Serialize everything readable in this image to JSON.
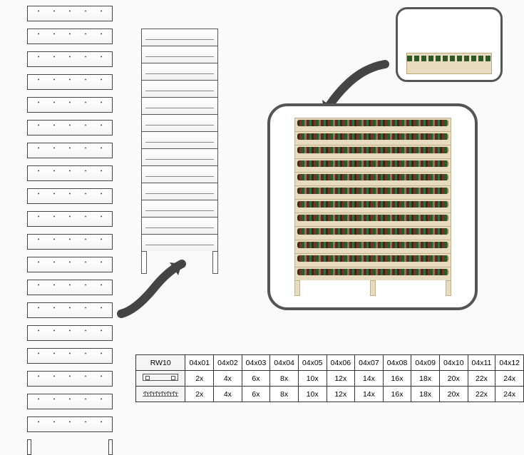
{
  "colors": {
    "background": "#fafafa",
    "line": "#555555",
    "table_border": "#333333",
    "wood": "#e8dcc0",
    "wood_edge": "#c0b088",
    "arrow": "#444444",
    "box_border": "#555555"
  },
  "exploded_rack": {
    "shelves": 19
  },
  "assembled_rack": {
    "shelves": 13
  },
  "product_rack": {
    "shelves": 12
  },
  "thumbnail": {
    "border_radius": 16
  },
  "product_box": {
    "border_radius": 28
  },
  "spec_table": {
    "model_label": "RW10",
    "columns": [
      "04x01",
      "04x02",
      "04x03",
      "04x04",
      "04x05",
      "04x06",
      "04x07",
      "04x08",
      "04x09",
      "04x10",
      "04x11",
      "04x12"
    ],
    "rows": [
      {
        "part": "flat",
        "values": [
          "2x",
          "4x",
          "6x",
          "8x",
          "10x",
          "12x",
          "14x",
          "16x",
          "18x",
          "20x",
          "22x",
          "24x"
        ]
      },
      {
        "part": "wavy",
        "values": [
          "2x",
          "4x",
          "6x",
          "8x",
          "10x",
          "12x",
          "14x",
          "16x",
          "18x",
          "20x",
          "22x",
          "24x"
        ]
      }
    ]
  }
}
